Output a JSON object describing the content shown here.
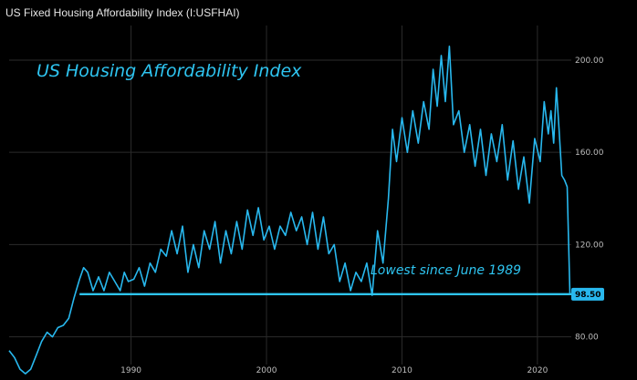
{
  "header": {
    "title": "US Fixed Housing Affordability Index (I:USFHAI)"
  },
  "colors": {
    "line": "#28b8ee",
    "annotation": "#2ec4f0",
    "grid": "#2b2b2b",
    "background": "#000000",
    "label_bg": "#28b8ee"
  },
  "chart_data": {
    "type": "line",
    "title": "",
    "xlabel": "",
    "ylabel": "",
    "xlim": [
      1981,
      2022.5
    ],
    "ylim": [
      68,
      215
    ],
    "x_ticks": [
      1990,
      2000,
      2010,
      2020
    ],
    "y_ticks": [
      80,
      120,
      160,
      200
    ],
    "x_tick_labels": [
      "1990",
      "2000",
      "2010",
      "2020"
    ],
    "y_tick_labels": [
      "80.00",
      "120.00",
      "160.00",
      "200.00"
    ],
    "grid": true,
    "series": [
      {
        "x": [
          1981.0,
          1981.4,
          1981.8,
          1982.2,
          1982.6,
          1983.0,
          1983.4,
          1983.8,
          1984.2,
          1984.6,
          1985.0,
          1985.4,
          1985.8,
          1986.2,
          1986.5,
          1986.8,
          1987.2,
          1987.6,
          1988.0,
          1988.4,
          1988.8,
          1989.2,
          1989.5,
          1989.8,
          1990.2,
          1990.6,
          1991.0,
          1991.4,
          1991.8,
          1992.2,
          1992.6,
          1993.0,
          1993.4,
          1993.8,
          1994.2,
          1994.6,
          1995.0,
          1995.4,
          1995.8,
          1996.2,
          1996.6,
          1997.0,
          1997.4,
          1997.8,
          1998.2,
          1998.6,
          1999.0,
          1999.4,
          1999.8,
          2000.2,
          2000.6,
          2001.0,
          2001.4,
          2001.8,
          2002.2,
          2002.6,
          2003.0,
          2003.4,
          2003.8,
          2004.2,
          2004.6,
          2005.0,
          2005.4,
          2005.8,
          2006.2,
          2006.6,
          2007.0,
          2007.4,
          2007.8,
          2008.2,
          2008.6,
          2009.0,
          2009.3,
          2009.6,
          2010.0,
          2010.4,
          2010.8,
          2011.2,
          2011.6,
          2012.0,
          2012.3,
          2012.6,
          2012.9,
          2013.2,
          2013.5,
          2013.8,
          2014.2,
          2014.6,
          2015.0,
          2015.4,
          2015.8,
          2016.2,
          2016.6,
          2017.0,
          2017.4,
          2017.8,
          2018.2,
          2018.6,
          2019.0,
          2019.4,
          2019.8,
          2020.2,
          2020.5,
          2020.8,
          2021.0,
          2021.2,
          2021.4,
          2021.6,
          2021.8,
          2022.0,
          2022.2,
          2022.4
        ],
        "y": [
          74,
          71,
          66,
          64,
          66,
          72,
          78,
          82,
          80,
          84,
          85,
          88,
          97,
          105,
          110,
          108,
          100,
          106,
          100,
          108,
          104,
          100,
          108,
          104,
          105,
          110,
          102,
          112,
          108,
          118,
          115,
          126,
          116,
          128,
          108,
          120,
          110,
          126,
          118,
          130,
          112,
          126,
          116,
          130,
          118,
          135,
          124,
          136,
          122,
          128,
          118,
          128,
          124,
          134,
          126,
          132,
          120,
          134,
          118,
          132,
          116,
          120,
          104,
          112,
          100,
          108,
          104,
          112,
          98,
          126,
          112,
          140,
          170,
          156,
          175,
          160,
          178,
          164,
          182,
          170,
          196,
          180,
          202,
          182,
          206,
          172,
          178,
          160,
          172,
          154,
          170,
          150,
          168,
          156,
          172,
          148,
          165,
          144,
          158,
          138,
          166,
          156,
          182,
          168,
          178,
          164,
          188,
          170,
          150,
          148,
          145,
          98.5
        ]
      }
    ],
    "annotations": [
      {
        "text": "US Housing Affordability Index"
      },
      {
        "text": "Lowest since June 1989"
      }
    ],
    "reference_line": {
      "value": 98.5,
      "label": "98.50"
    }
  }
}
